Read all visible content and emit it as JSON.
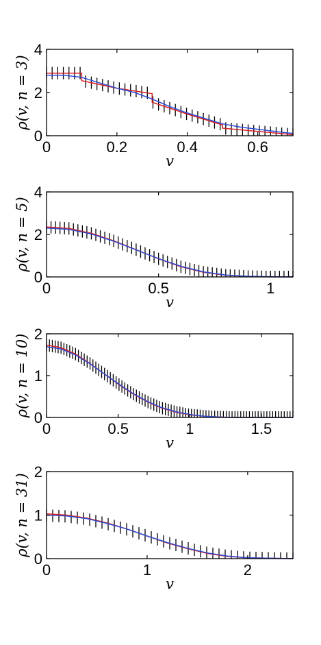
{
  "colors": {
    "exact": "#d81e1e",
    "approx": "#2a4ad8",
    "samples": "#000000"
  },
  "chart_data": [
    {
      "type": "line",
      "ylabel": "ρ(v, n = 3)",
      "xlabel": "v",
      "xlim": [
        0,
        0.7
      ],
      "ylim": [
        0,
        4
      ],
      "xticks": [
        0,
        0.2,
        0.4,
        0.6
      ],
      "xtick_labels": [
        "0",
        "0.2",
        "0.4",
        "0.6"
      ],
      "yticks": [
        0,
        2,
        4
      ],
      "ytick_labels": [
        "0",
        "2",
        "4"
      ],
      "series": [
        {
          "key": "exact",
          "x": [
            0,
            0.1,
            0.1,
            0.2,
            0.3,
            0.3,
            0.4,
            0.5,
            0.5,
            0.6,
            0.7
          ],
          "y": [
            2.9,
            2.9,
            2.55,
            2.2,
            1.95,
            1.55,
            1.0,
            0.5,
            0.35,
            0.2,
            0.05
          ]
        },
        {
          "key": "approx",
          "x": [
            0,
            0.05,
            0.1,
            0.15,
            0.2,
            0.25,
            0.3,
            0.35,
            0.4,
            0.45,
            0.5,
            0.55,
            0.6,
            0.65,
            0.7
          ],
          "y": [
            2.8,
            2.8,
            2.7,
            2.45,
            2.2,
            2.0,
            1.7,
            1.35,
            1.05,
            0.8,
            0.55,
            0.4,
            0.3,
            0.2,
            0.1
          ]
        }
      ],
      "samples": {
        "x": [
          0,
          0.7
        ],
        "n": 45,
        "profile_x": [
          0,
          0.1,
          0.1,
          0.2,
          0.3,
          0.3,
          0.4,
          0.5,
          0.5,
          0.6,
          0.7
        ],
        "profile_y": [
          2.9,
          2.9,
          2.55,
          2.2,
          1.95,
          1.55,
          1.0,
          0.5,
          0.35,
          0.2,
          0.05
        ]
      }
    },
    {
      "type": "line",
      "ylabel": "ρ(v, n = 5)",
      "xlabel": "v",
      "xlim": [
        0,
        1.1
      ],
      "ylim": [
        0,
        4
      ],
      "xticks": [
        0,
        0.5,
        1
      ],
      "xtick_labels": [
        "0",
        "0.5",
        "1"
      ],
      "yticks": [
        0,
        2,
        4
      ],
      "ytick_labels": [
        "0",
        "2",
        "4"
      ],
      "series": [
        {
          "key": "exact",
          "x": [
            0,
            0.1,
            0.2,
            0.3,
            0.4,
            0.5,
            0.6,
            0.7,
            0.8,
            0.9,
            1.0,
            1.1
          ],
          "y": [
            2.35,
            2.28,
            2.05,
            1.7,
            1.28,
            0.85,
            0.48,
            0.22,
            0.08,
            0.02,
            0.0,
            0.0
          ]
        },
        {
          "key": "approx",
          "x": [
            0,
            0.1,
            0.2,
            0.3,
            0.4,
            0.5,
            0.6,
            0.7,
            0.8,
            0.9,
            1.0,
            1.1
          ],
          "y": [
            2.3,
            2.24,
            2.02,
            1.68,
            1.27,
            0.86,
            0.5,
            0.24,
            0.09,
            0.03,
            0.01,
            0.0
          ]
        }
      ],
      "samples": {
        "x": [
          0,
          1.1
        ],
        "n": 56,
        "profile_x": [
          0,
          0.1,
          0.2,
          0.3,
          0.4,
          0.5,
          0.6,
          0.7,
          0.8,
          0.9,
          1.0,
          1.1
        ],
        "profile_y": [
          2.35,
          2.28,
          2.05,
          1.7,
          1.28,
          0.85,
          0.48,
          0.22,
          0.08,
          0.02,
          0.0,
          0.0
        ]
      }
    },
    {
      "type": "line",
      "ylabel": "ρ(v, n = 10)",
      "xlabel": "v",
      "xlim": [
        0,
        1.72
      ],
      "ylim": [
        0,
        2
      ],
      "xticks": [
        0,
        0.5,
        1,
        1.5
      ],
      "xtick_labels": [
        "0",
        "0.5",
        "1",
        "1.5"
      ],
      "yticks": [
        0,
        1,
        2
      ],
      "ytick_labels": [
        "0",
        "1",
        "2"
      ],
      "series": [
        {
          "key": "exact",
          "x": [
            0,
            0.1,
            0.2,
            0.3,
            0.4,
            0.5,
            0.6,
            0.7,
            0.8,
            0.9,
            1.0,
            1.1,
            1.2,
            1.3,
            1.72
          ],
          "y": [
            1.73,
            1.67,
            1.52,
            1.3,
            1.05,
            0.8,
            0.57,
            0.38,
            0.23,
            0.13,
            0.06,
            0.03,
            0.01,
            0.0,
            0.0
          ]
        },
        {
          "key": "approx",
          "x": [
            0,
            0.1,
            0.2,
            0.3,
            0.4,
            0.5,
            0.6,
            0.7,
            0.8,
            0.9,
            1.0,
            1.1,
            1.2,
            1.3,
            1.72
          ],
          "y": [
            1.69,
            1.64,
            1.5,
            1.29,
            1.05,
            0.81,
            0.58,
            0.39,
            0.24,
            0.14,
            0.07,
            0.03,
            0.01,
            0.0,
            0.0
          ]
        }
      ],
      "samples": {
        "x": [
          0,
          1.72
        ],
        "n": 86,
        "profile_x": [
          0,
          0.1,
          0.2,
          0.3,
          0.4,
          0.5,
          0.6,
          0.7,
          0.8,
          0.9,
          1.0,
          1.1,
          1.2,
          1.3,
          1.72
        ],
        "profile_y": [
          1.73,
          1.67,
          1.52,
          1.3,
          1.05,
          0.8,
          0.57,
          0.38,
          0.23,
          0.13,
          0.06,
          0.03,
          0.01,
          0.0,
          0.0
        ]
      }
    },
    {
      "type": "line",
      "ylabel": "ρ(v, n = 31)",
      "xlabel": "v",
      "xlim": [
        0,
        2.45
      ],
      "ylim": [
        0,
        2
      ],
      "xticks": [
        0,
        1,
        2
      ],
      "xtick_labels": [
        "0",
        "1",
        "2"
      ],
      "yticks": [
        0,
        1,
        2
      ],
      "ytick_labels": [
        "0",
        "1",
        "2"
      ],
      "series": [
        {
          "key": "exact",
          "x": [
            0,
            0.2,
            0.4,
            0.6,
            0.8,
            1.0,
            1.2,
            1.4,
            1.6,
            1.8,
            2.0,
            2.45
          ],
          "y": [
            1.03,
            1.0,
            0.93,
            0.82,
            0.68,
            0.52,
            0.36,
            0.23,
            0.12,
            0.05,
            0.02,
            0.0
          ]
        },
        {
          "key": "approx",
          "x": [
            0,
            0.2,
            0.4,
            0.6,
            0.8,
            1.0,
            1.2,
            1.4,
            1.6,
            1.8,
            2.0,
            2.45
          ],
          "y": [
            1.0,
            0.98,
            0.92,
            0.81,
            0.68,
            0.52,
            0.37,
            0.24,
            0.13,
            0.06,
            0.02,
            0.0
          ]
        }
      ],
      "samples": {
        "x": [
          0,
          2.45
        ],
        "n": 41,
        "profile_x": [
          0,
          0.2,
          0.4,
          0.6,
          0.8,
          1.0,
          1.2,
          1.4,
          1.6,
          1.8,
          2.0,
          2.45
        ],
        "profile_y": [
          0.99,
          0.97,
          0.91,
          0.8,
          0.67,
          0.52,
          0.37,
          0.24,
          0.13,
          0.06,
          0.02,
          0.0
        ]
      }
    }
  ]
}
